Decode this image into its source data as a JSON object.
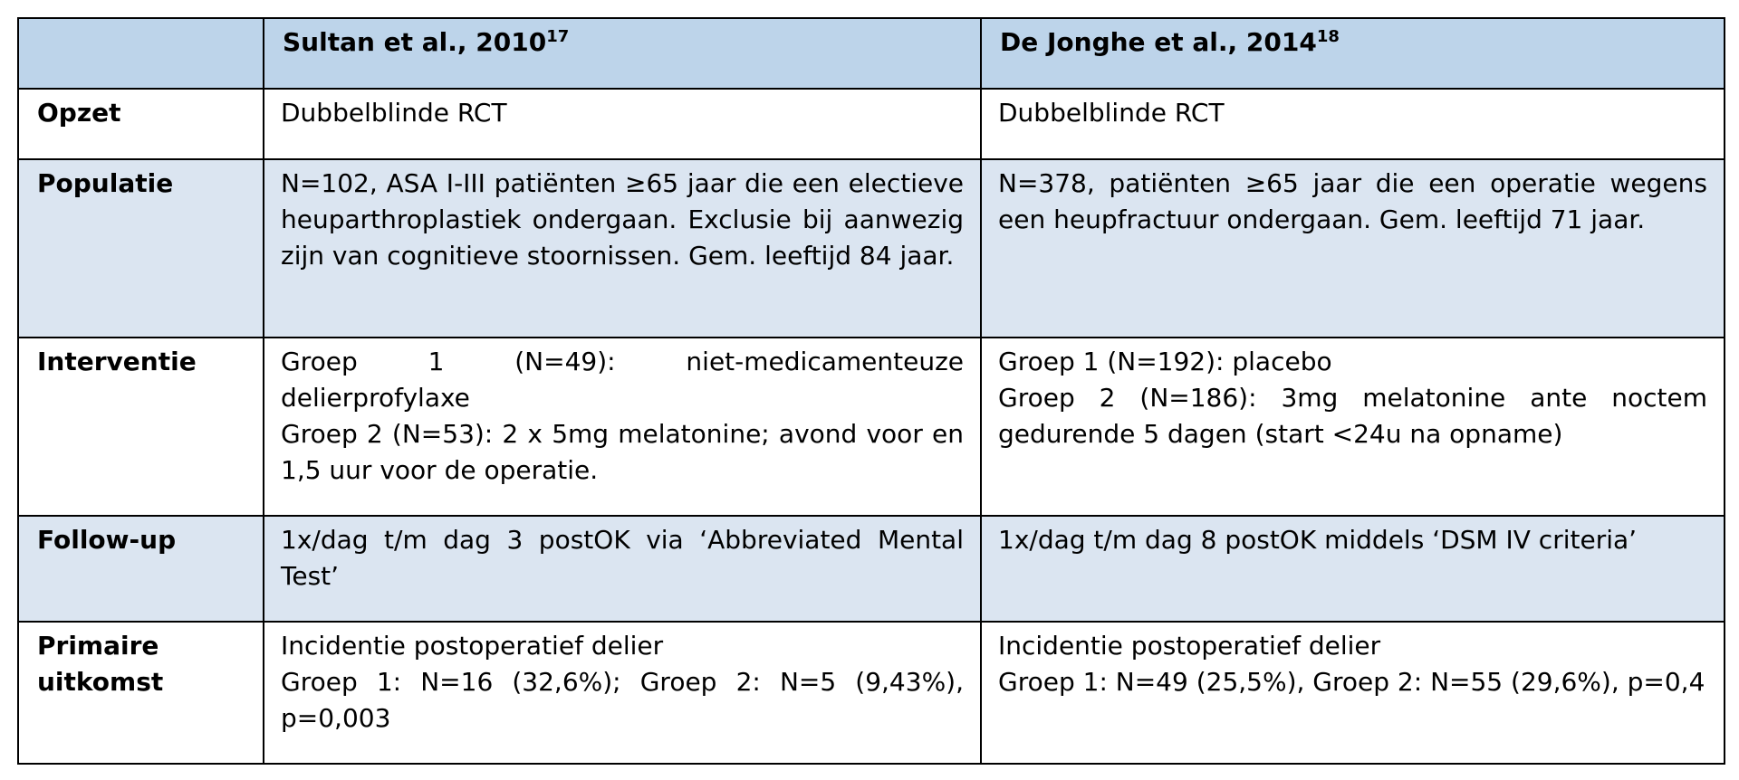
{
  "table": {
    "headers": [
      {
        "label": "",
        "sup": ""
      },
      {
        "label": "Sultan et al., 2010",
        "sup": "17"
      },
      {
        "label": "De Jonghe et al., 2014",
        "sup": "18"
      }
    ],
    "rows": [
      {
        "label": "Opzet",
        "sultan": "Dubbelblinde RCT",
        "dejonghe": "Dubbelblinde RCT"
      },
      {
        "label": "Populatie",
        "sultan": "N=102, ASA I-III patiënten ≥65 jaar die een electieve heuparthroplastiek ondergaan. Exclusie bij aanwezig zijn van cognitieve stoornissen. Gem. leeftijd 84 jaar.",
        "dejonghe": "N=378, patiënten ≥65 jaar die een operatie wegens een heupfractuur ondergaan. Gem. leeftijd 71 jaar."
      },
      {
        "label": "Interventie",
        "sultan": {
          "line1": "Groep 1 (N=49): niet-medicamenteuze delierprofylaxe",
          "line2": "Groep 2 (N=53): 2 x 5mg melatonine; avond voor en 1,5 uur voor de operatie."
        },
        "dejonghe": {
          "line1": "Groep 1 (N=192): placebo",
          "line2": "Groep 2 (N=186): 3mg melatonine ante noctem gedurende 5 dagen (start <24u na opname)"
        }
      },
      {
        "label": "Follow-up",
        "sultan": "1x/dag t/m dag 3 postOK via ‘Abbreviated Mental Test’",
        "dejonghe": "1x/dag t/m dag 8 postOK middels ‘DSM IV criteria’"
      },
      {
        "label_line1": "Primaire",
        "label_line2": "uitkomst",
        "sultan": {
          "line1": "Incidentie postoperatief delier",
          "line2": "Groep 1: N=16 (32,6%); Groep 2: N=5 (9,43%), p=0,003"
        },
        "dejonghe": {
          "line1": "Incidentie postoperatief delier",
          "line2": "Groep 1: N=49 (25,5%), Groep 2: N=55 (29,6%), p=0,4"
        }
      }
    ]
  },
  "colors": {
    "header_fill": "#bdd4ea",
    "shaded_row_fill": "#dbe5f1",
    "border": "#000000"
  }
}
